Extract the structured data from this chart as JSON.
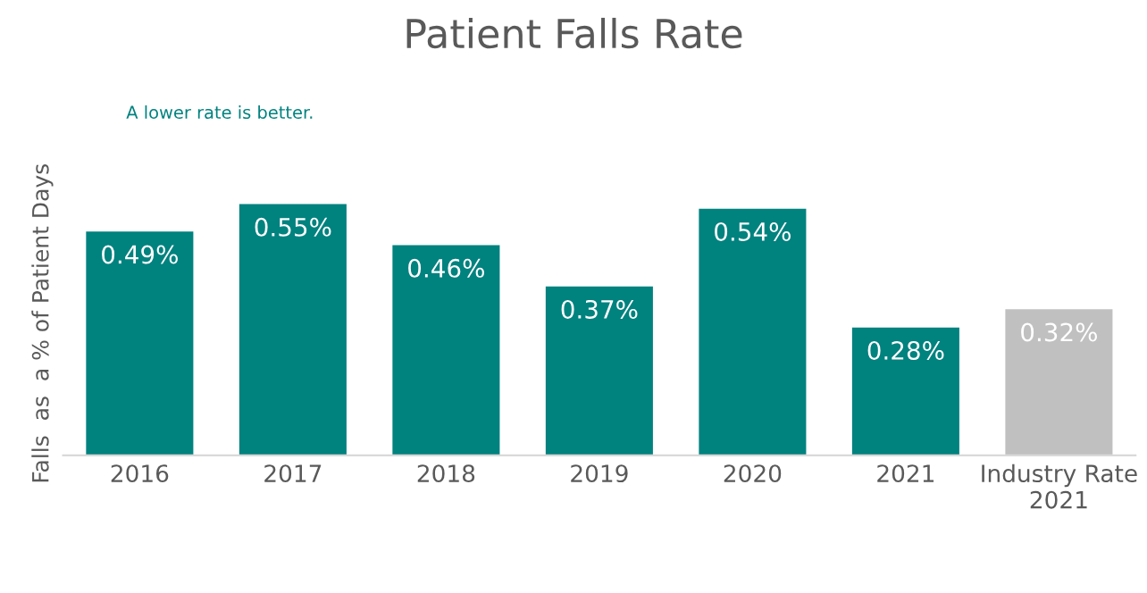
{
  "chart_data": {
    "type": "bar",
    "title": "Patient Falls Rate",
    "ylabel": "Falls  as  a % of Patient Days",
    "annotations": [
      "A lower rate is better."
    ],
    "categories": [
      "2016",
      "2017",
      "2018",
      "2019",
      "2020",
      "2021",
      "Industry Rate\n2021"
    ],
    "values": [
      0.49,
      0.55,
      0.46,
      0.37,
      0.54,
      0.28,
      0.32
    ],
    "value_labels": [
      "0.49%",
      "0.55%",
      "0.46%",
      "0.37%",
      "0.54%",
      "0.28%",
      "0.32%"
    ],
    "colors": [
      "#00827f",
      "#00827f",
      "#00827f",
      "#00827f",
      "#00827f",
      "#00827f",
      "#c0c0c0"
    ],
    "grid": false,
    "legend": false
  }
}
